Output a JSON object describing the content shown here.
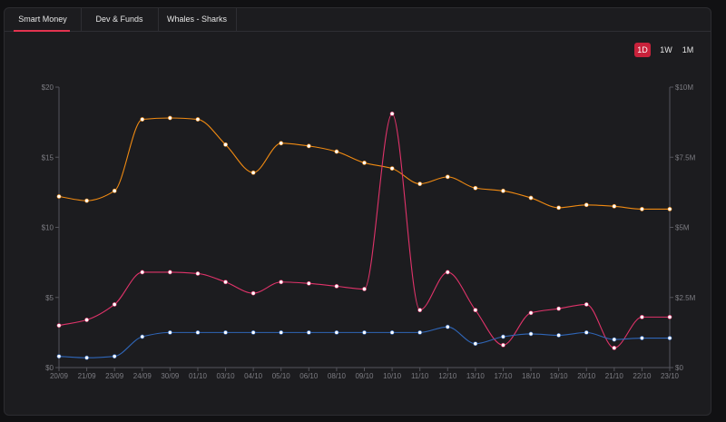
{
  "tabs": [
    {
      "label": "Smart Money",
      "active": true
    },
    {
      "label": "Dev & Funds",
      "active": false
    },
    {
      "label": "Whales - Sharks",
      "active": false
    }
  ],
  "time_ranges": [
    {
      "label": "1D",
      "active": true
    },
    {
      "label": "1W",
      "active": false
    },
    {
      "label": "1M",
      "active": false
    }
  ],
  "colors": {
    "orange": "#f08a12",
    "pink": "#e0336a",
    "blue": "#2f66b8",
    "accent": "#c8223b"
  },
  "chart_data": {
    "type": "line",
    "categories": [
      "20/09",
      "21/09",
      "23/09",
      "24/09",
      "30/09",
      "01/10",
      "03/10",
      "04/10",
      "05/10",
      "06/10",
      "08/10",
      "09/10",
      "10/10",
      "11/10",
      "12/10",
      "13/10",
      "17/10",
      "18/10",
      "19/10",
      "20/10",
      "21/10",
      "22/10",
      "23/10"
    ],
    "y_left": {
      "min": 0,
      "max": 20,
      "ticks": [
        0,
        5,
        10,
        15,
        20
      ],
      "tick_labels": [
        "$0",
        "$5",
        "$10",
        "$15",
        "$20"
      ]
    },
    "y_right": {
      "min": 0,
      "max": 10,
      "ticks": [
        0,
        2.5,
        5,
        7.5,
        10
      ],
      "tick_labels": [
        "$0",
        "$2.5M",
        "$5M",
        "$7.5M",
        "$10M"
      ]
    },
    "series": [
      {
        "name": "orange",
        "axis": "left",
        "color": "#f08a12",
        "values": [
          12.2,
          11.9,
          12.6,
          17.7,
          17.8,
          17.7,
          15.9,
          13.9,
          16.0,
          15.8,
          15.4,
          14.6,
          14.2,
          13.1,
          13.6,
          12.8,
          12.6,
          12.1,
          11.4,
          11.6,
          11.5,
          11.3,
          11.3
        ]
      },
      {
        "name": "pink",
        "axis": "left",
        "color": "#e0336a",
        "values": [
          3.0,
          3.4,
          4.5,
          6.8,
          6.8,
          6.7,
          6.1,
          5.3,
          6.1,
          6.0,
          5.8,
          5.6,
          18.1,
          4.1,
          6.8,
          4.1,
          1.6,
          3.9,
          4.2,
          4.5,
          1.4,
          3.6,
          3.6
        ]
      },
      {
        "name": "blue",
        "axis": "left",
        "color": "#2f66b8",
        "values": [
          0.8,
          0.7,
          0.8,
          2.2,
          2.5,
          2.5,
          2.5,
          2.5,
          2.5,
          2.5,
          2.5,
          2.5,
          2.5,
          2.5,
          2.9,
          1.7,
          2.2,
          2.4,
          2.3,
          2.5,
          2.0,
          2.1,
          2.1
        ]
      }
    ]
  }
}
